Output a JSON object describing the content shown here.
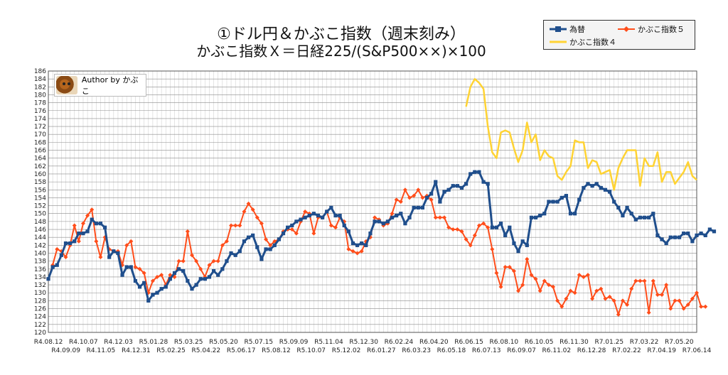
{
  "title": {
    "line1": "①ドル円＆かぶこ指数（週末刻み）",
    "line2": "かぶこ指数Ｘ＝日経225/(S&P500××)×100"
  },
  "author": {
    "label": "Author by かぶこ"
  },
  "legend": [
    {
      "label": "為替",
      "color": "#1f4e8c",
      "marker": "square"
    },
    {
      "label": "かぶこ指数５",
      "color": "#ff4d1a",
      "marker": "diamond"
    },
    {
      "label": "かぶこ指数４",
      "color": "#ffd333",
      "marker": "none"
    }
  ],
  "chart_data": {
    "type": "line",
    "title": "①ドル円＆かぶこ指数（週末刻み）",
    "ylim": [
      120,
      186
    ],
    "y_ticks": [
      120,
      122,
      124,
      126,
      128,
      130,
      132,
      134,
      136,
      138,
      140,
      142,
      144,
      146,
      148,
      150,
      152,
      154,
      156,
      158,
      160,
      162,
      164,
      166,
      168,
      170,
      172,
      174,
      176,
      178,
      180,
      182,
      184,
      186
    ],
    "x_tick_labels": [
      "R4.08.12",
      "R4.09.09",
      "R4.10.07",
      "R4.11.05",
      "R4.12.03",
      "R4.12.31",
      "R5.01.28",
      "R5.02.25",
      "R5.03.25",
      "R5.04.22",
      "R5.05.20",
      "R5.06.17",
      "R5.07.15",
      "R5.08.12",
      "R5.09.09",
      "R5.10.07",
      "R5.11.04",
      "R5.12.02",
      "R5.12.30",
      "R6.01.27",
      "R6.02.24",
      "R6.03.23",
      "R6.04.20",
      "R6.05.18",
      "R6.06.15",
      "R6.07.13",
      "R6.08.10",
      "R6.09.07",
      "R6.10.05",
      "R6.11.02",
      "R6.11.30",
      "R6.12.28",
      "R7.01.25",
      "R7.02.22",
      "R7.03.22",
      "R7.04.19",
      "R7.05.20",
      "R7.06.14"
    ],
    "n_points": 150,
    "grid": true,
    "legend_position": "top-right",
    "series": [
      {
        "name": "為替",
        "color": "#1f4e8c",
        "marker": "square",
        "start_index": 0,
        "values": [
          133.5,
          136.5,
          137.0,
          139.5,
          142.5,
          142.5,
          143.0,
          145.0,
          145.0,
          145.5,
          148.5,
          147.5,
          147.5,
          146.5,
          139.0,
          140.5,
          140.0,
          134.5,
          136.5,
          136.5,
          133.0,
          131.5,
          132.5,
          128.0,
          129.5,
          130.0,
          131.0,
          131.5,
          133.5,
          135.0,
          136.0,
          135.5,
          133.0,
          131.0,
          132.0,
          133.5,
          133.5,
          134.0,
          135.5,
          134.5,
          136.0,
          138.0,
          140.0,
          139.5,
          140.5,
          143.0,
          144.0,
          144.5,
          141.5,
          138.5,
          141.0,
          141.0,
          142.0,
          143.5,
          145.0,
          146.5,
          147.0,
          148.0,
          148.5,
          149.0,
          149.5,
          150.0,
          149.5,
          149.0,
          150.5,
          151.5,
          149.5,
          149.5,
          147.0,
          145.5,
          142.5,
          142.0,
          142.5,
          142.0,
          145.0,
          148.0,
          148.0,
          147.5,
          148.0,
          149.0,
          149.5,
          150.0,
          147.5,
          149.0,
          151.5,
          151.5,
          151.5,
          154.0,
          155.0,
          158.0,
          153.0,
          155.5,
          156.0,
          157.0,
          157.0,
          156.5,
          157.5,
          160.0,
          160.5,
          160.5,
          158.0,
          157.5,
          146.5,
          146.5,
          147.5,
          144.5,
          146.5,
          142.5,
          140.5,
          143.0,
          142.0,
          149.0,
          149.0,
          149.5,
          150.0,
          153.0,
          153.0,
          153.0,
          154.0,
          154.5,
          150.0,
          150.0,
          153.5,
          156.5,
          157.5,
          157.0,
          157.5,
          156.5,
          156.0,
          155.5,
          153.0,
          151.5,
          149.5,
          151.5,
          150.0,
          148.5,
          149.0,
          149.0,
          149.0,
          150.0,
          144.5,
          143.5,
          142.5,
          144.0,
          144.0,
          144.0,
          145.0,
          145.0,
          143.0,
          144.5,
          145.0,
          144.5,
          146.0,
          145.5
        ]
      },
      {
        "name": "かぶこ指数５",
        "color": "#ff4d1a",
        "marker": "diamond",
        "start_index": 0,
        "values": [
          133.5,
          137.0,
          141.0,
          140.5,
          139.0,
          142.0,
          147.0,
          143.0,
          147.5,
          149.5,
          151.0,
          143.0,
          139.0,
          144.0,
          141.0,
          140.5,
          140.5,
          137.0,
          142.0,
          143.0,
          136.5,
          136.0,
          135.0,
          130.0,
          133.0,
          134.0,
          134.5,
          132.0,
          134.5,
          134.0,
          138.0,
          138.0,
          145.5,
          139.5,
          138.0,
          136.0,
          134.0,
          137.0,
          138.0,
          138.0,
          142.0,
          143.0,
          147.0,
          147.0,
          147.0,
          150.5,
          152.5,
          151.0,
          149.0,
          147.5,
          143.5,
          142.0,
          143.0,
          143.5,
          145.5,
          146.0,
          146.0,
          145.0,
          148.0,
          150.5,
          150.0,
          145.0,
          149.0,
          149.0,
          150.5,
          147.0,
          146.5,
          149.0,
          148.0,
          141.0,
          140.5,
          140.0,
          140.5,
          143.0,
          144.0,
          149.0,
          148.5,
          147.0,
          147.5,
          150.0,
          153.5,
          153.0,
          156.0,
          154.0,
          154.5,
          156.0,
          154.0,
          154.5,
          153.5,
          149.0,
          149.0,
          149.0,
          146.5,
          146.0,
          146.0,
          145.5,
          143.5,
          142.0,
          144.5,
          147.0,
          147.5,
          146.5,
          141.0,
          135.0,
          131.5,
          136.5,
          136.5,
          135.5,
          130.5,
          132.0,
          138.5,
          134.5,
          133.5,
          130.5,
          133.0,
          132.0,
          131.5,
          128.0,
          126.5,
          128.5,
          130.5,
          130.0,
          134.5,
          134.0,
          134.5,
          128.5,
          130.5,
          131.0,
          128.5,
          129.0,
          128.0,
          124.5,
          128.0,
          127.0,
          131.0,
          133.0,
          133.0,
          133.0,
          125.0,
          133.0,
          129.5,
          129.5,
          132.0,
          126.0,
          128.0,
          128.0,
          126.0,
          127.0,
          128.5,
          130.0,
          126.5,
          126.5
        ]
      },
      {
        "name": "かぶこ指数４",
        "color": "#ffd333",
        "marker": "none",
        "start_index": 96,
        "values": [
          177.0,
          182.0,
          184.0,
          183.0,
          181.5,
          172.0,
          165.5,
          164.0,
          170.5,
          171.0,
          170.5,
          166.5,
          163.0,
          166.0,
          173.0,
          168.0,
          170.0,
          163.5,
          166.0,
          164.5,
          164.0,
          159.5,
          158.5,
          160.5,
          162.0,
          168.5,
          168.0,
          168.0,
          161.5,
          163.5,
          163.0,
          160.0,
          160.5,
          161.0,
          156.0,
          161.5,
          164.0,
          166.0,
          166.0,
          166.0,
          157.0,
          164.0,
          162.0,
          162.0,
          165.5,
          158.0,
          160.5,
          160.5,
          157.5,
          159.0,
          160.5,
          163.0,
          159.5,
          158.5
        ]
      }
    ]
  }
}
